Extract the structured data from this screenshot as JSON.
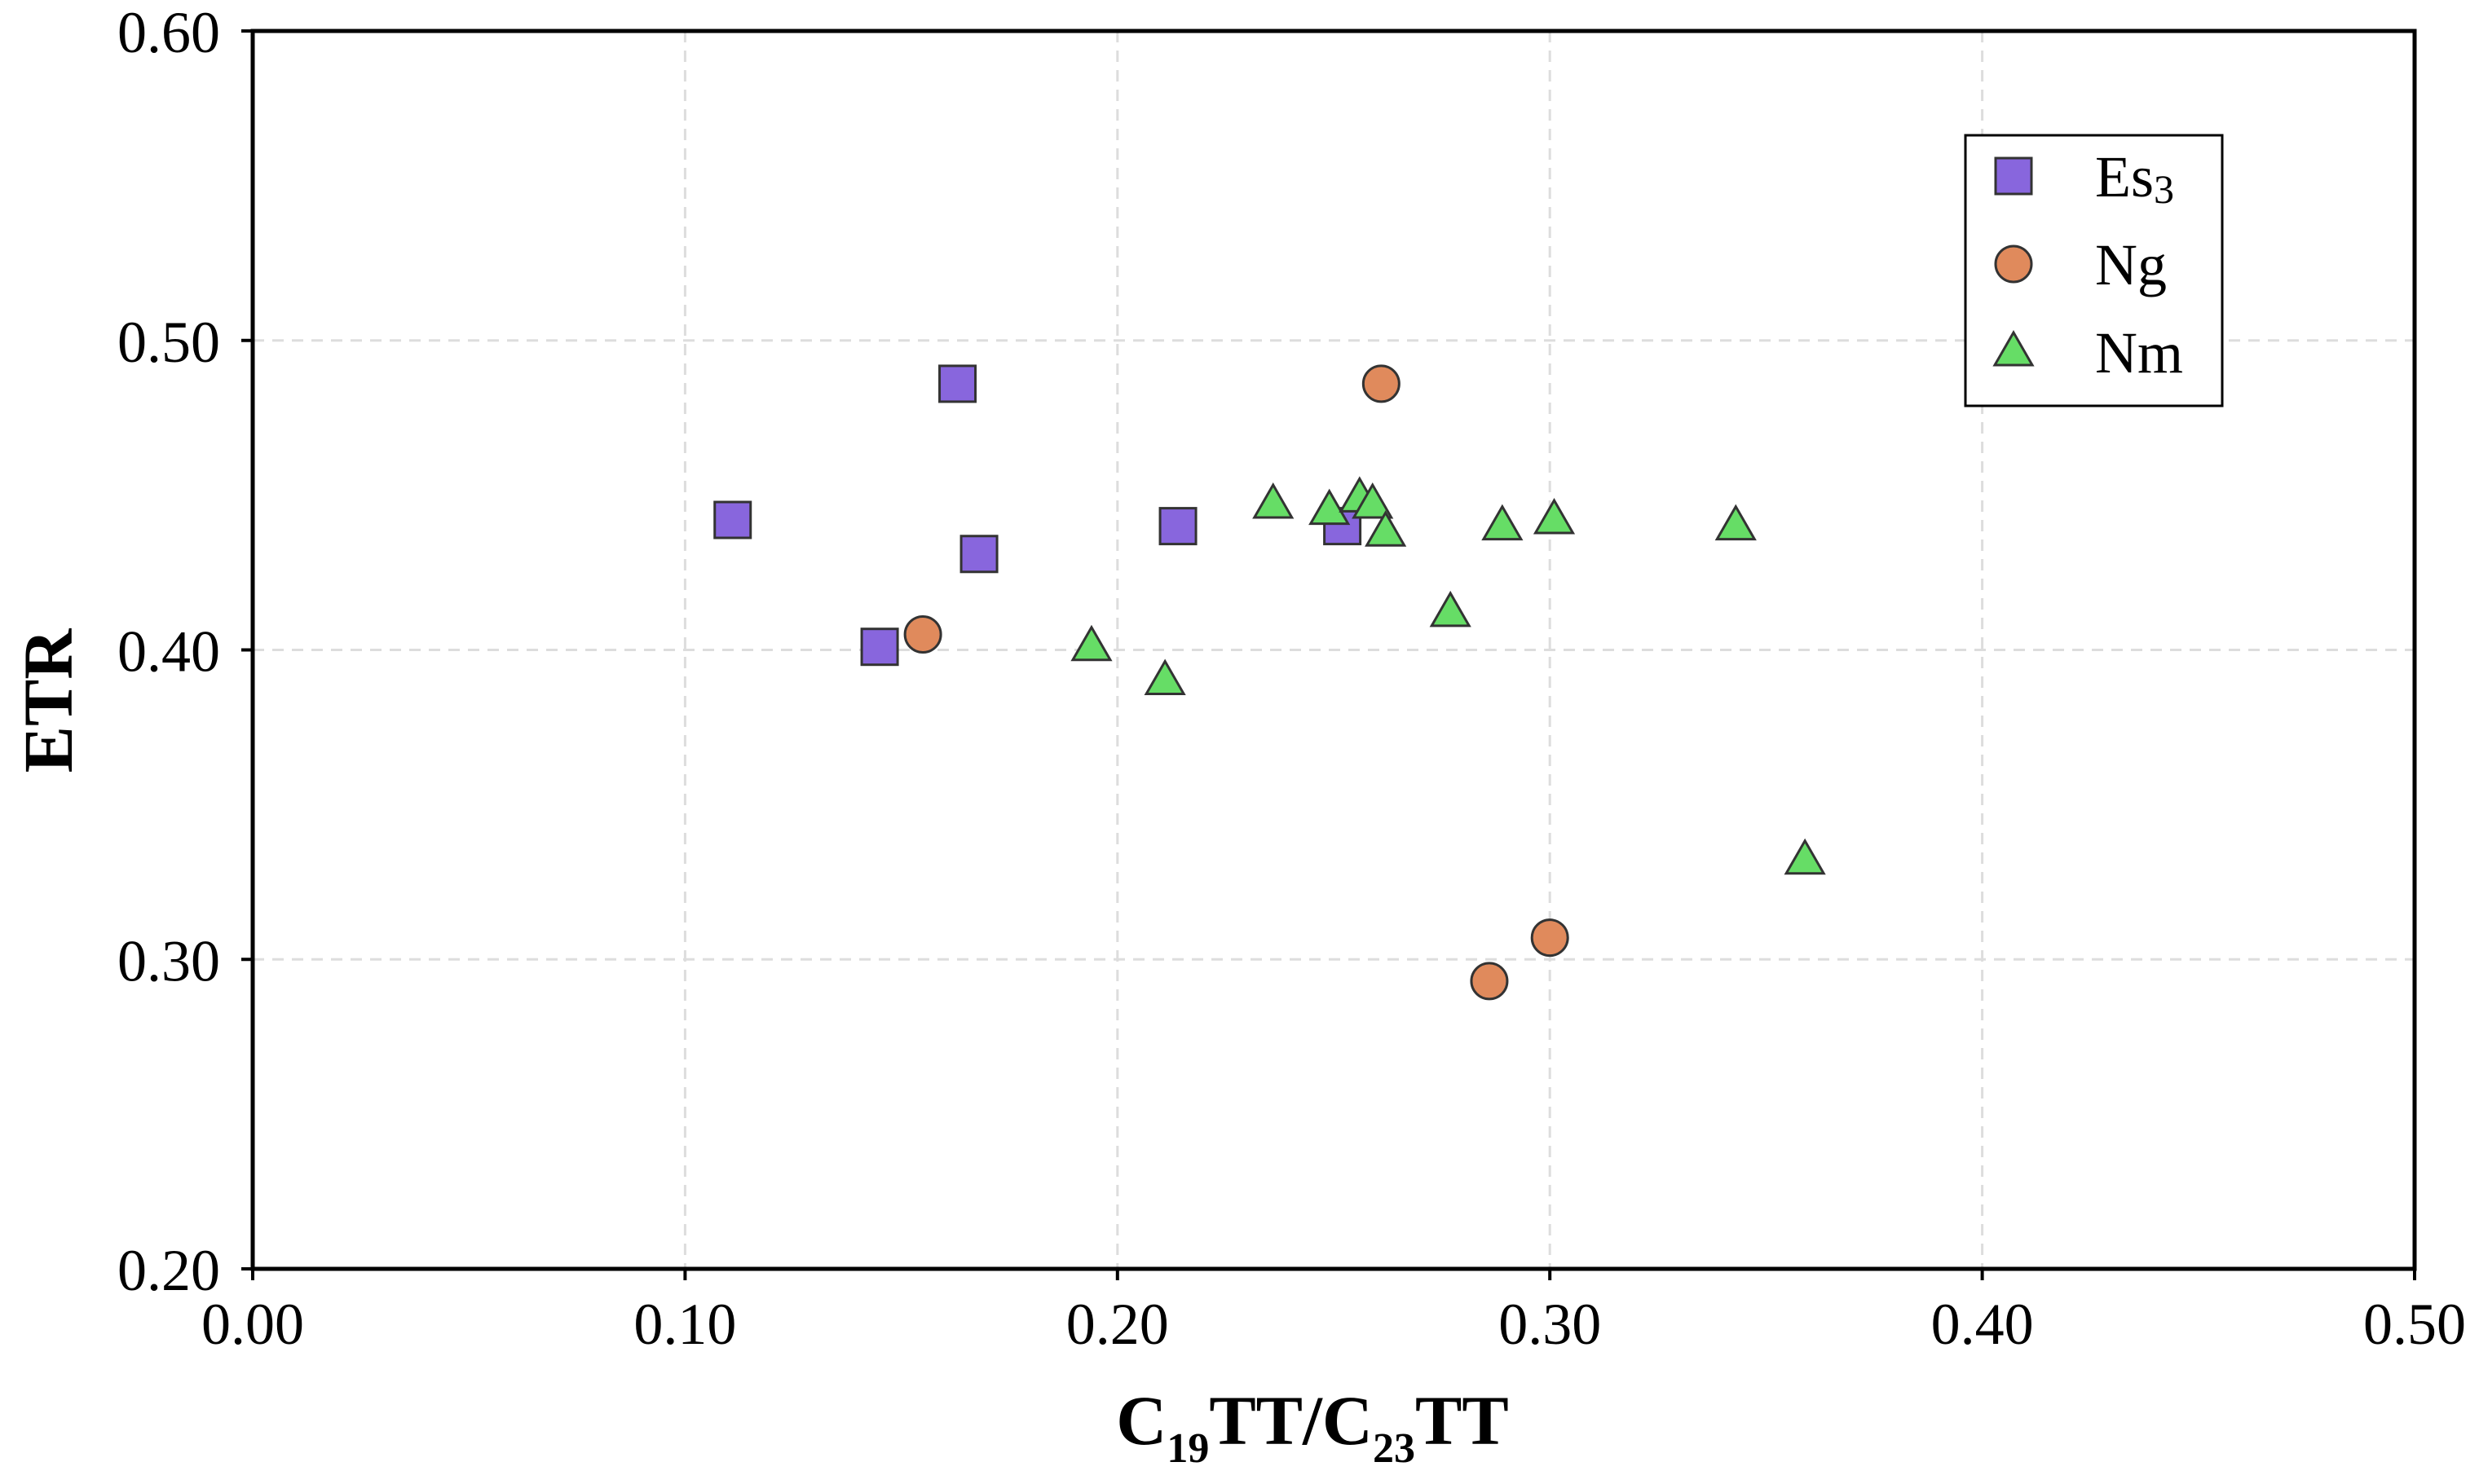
{
  "chart_data": {
    "type": "scatter",
    "title": "",
    "xlabel": {
      "main": "C",
      "sub1": "19",
      "mid": "TT/C",
      "sub2": "23",
      "end": "TT"
    },
    "ylabel": "ETR",
    "xlim": [
      0.0,
      0.5
    ],
    "ylim": [
      0.2,
      0.6
    ],
    "xticks": [
      0.0,
      0.1,
      0.2,
      0.3,
      0.4,
      0.5
    ],
    "yticks": [
      0.2,
      0.3,
      0.4,
      0.5,
      0.6
    ],
    "xtick_labels": [
      "0.00",
      "0.10",
      "0.20",
      "0.30",
      "0.40",
      "0.50"
    ],
    "ytick_labels": [
      "0.20",
      "0.30",
      "0.40",
      "0.50",
      "0.60"
    ],
    "grid": true,
    "legend_position": "top-right",
    "series": [
      {
        "name": "Es",
        "name_sub": "3",
        "marker": "square",
        "color": "#8866dd",
        "points": [
          {
            "x": 0.111,
            "y": 0.442
          },
          {
            "x": 0.145,
            "y": 0.401
          },
          {
            "x": 0.163,
            "y": 0.486
          },
          {
            "x": 0.168,
            "y": 0.431
          },
          {
            "x": 0.214,
            "y": 0.44
          },
          {
            "x": 0.252,
            "y": 0.44
          }
        ]
      },
      {
        "name": "Ng",
        "name_sub": "",
        "marker": "circle",
        "color": "#e08a5c",
        "points": [
          {
            "x": 0.155,
            "y": 0.405
          },
          {
            "x": 0.261,
            "y": 0.486
          },
          {
            "x": 0.286,
            "y": 0.293
          },
          {
            "x": 0.3,
            "y": 0.307
          }
        ]
      },
      {
        "name": "Nm",
        "name_sub": "",
        "marker": "triangle",
        "color": "#66dd66",
        "points": [
          {
            "x": 0.194,
            "y": 0.401
          },
          {
            "x": 0.211,
            "y": 0.39
          },
          {
            "x": 0.236,
            "y": 0.447
          },
          {
            "x": 0.249,
            "y": 0.445
          },
          {
            "x": 0.256,
            "y": 0.449
          },
          {
            "x": 0.259,
            "y": 0.447
          },
          {
            "x": 0.262,
            "y": 0.438
          },
          {
            "x": 0.277,
            "y": 0.412
          },
          {
            "x": 0.289,
            "y": 0.44
          },
          {
            "x": 0.301,
            "y": 0.442
          },
          {
            "x": 0.343,
            "y": 0.44
          },
          {
            "x": 0.359,
            "y": 0.332
          }
        ]
      }
    ]
  }
}
